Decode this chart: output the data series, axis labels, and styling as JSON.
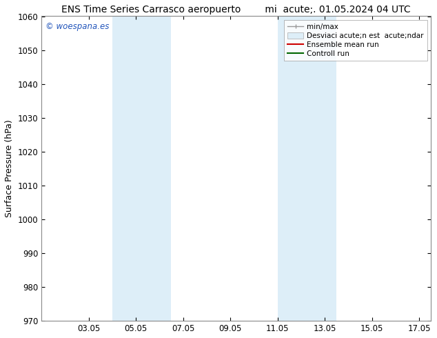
{
  "title": "ENS Time Series Carrasco aeropuerto",
  "title2": "mi  acute;. 01.05.2024 04 UTC",
  "ylabel": "Surface Pressure (hPa)",
  "ylim": [
    970,
    1060
  ],
  "yticks": [
    970,
    980,
    990,
    1000,
    1010,
    1020,
    1030,
    1040,
    1050,
    1060
  ],
  "xticks_labels": [
    "03.05",
    "05.05",
    "07.05",
    "09.05",
    "11.05",
    "13.05",
    "15.05",
    "17.05"
  ],
  "xticks_values": [
    2,
    4,
    6,
    8,
    10,
    12,
    14,
    16
  ],
  "xlim": [
    0,
    16.5
  ],
  "shaded_regions": [
    {
      "xmin": 3.0,
      "xmax": 4.0,
      "color": "#ddeef8"
    },
    {
      "xmin": 4.0,
      "xmax": 5.5,
      "color": "#ddeef8"
    },
    {
      "xmin": 10.0,
      "xmax": 11.0,
      "color": "#ddeef8"
    },
    {
      "xmin": 11.0,
      "xmax": 12.5,
      "color": "#ddeef8"
    }
  ],
  "watermark_text": "© woespana.es",
  "watermark_color": "#2255bb",
  "background_color": "#ffffff",
  "legend_label_minmax": "min/max",
  "legend_label_std": "Desviaci acute;n est  acute;ndar",
  "legend_label_ens": "Ensemble mean run",
  "legend_label_ctrl": "Controll run",
  "legend_color_minmax": "#999999",
  "legend_color_std": "#ddeef8",
  "legend_color_ens": "#cc0000",
  "legend_color_ctrl": "#006600",
  "border_color": "#888888",
  "title_fontsize": 10,
  "tick_fontsize": 8.5,
  "ylabel_fontsize": 9,
  "legend_fontsize": 7.5
}
